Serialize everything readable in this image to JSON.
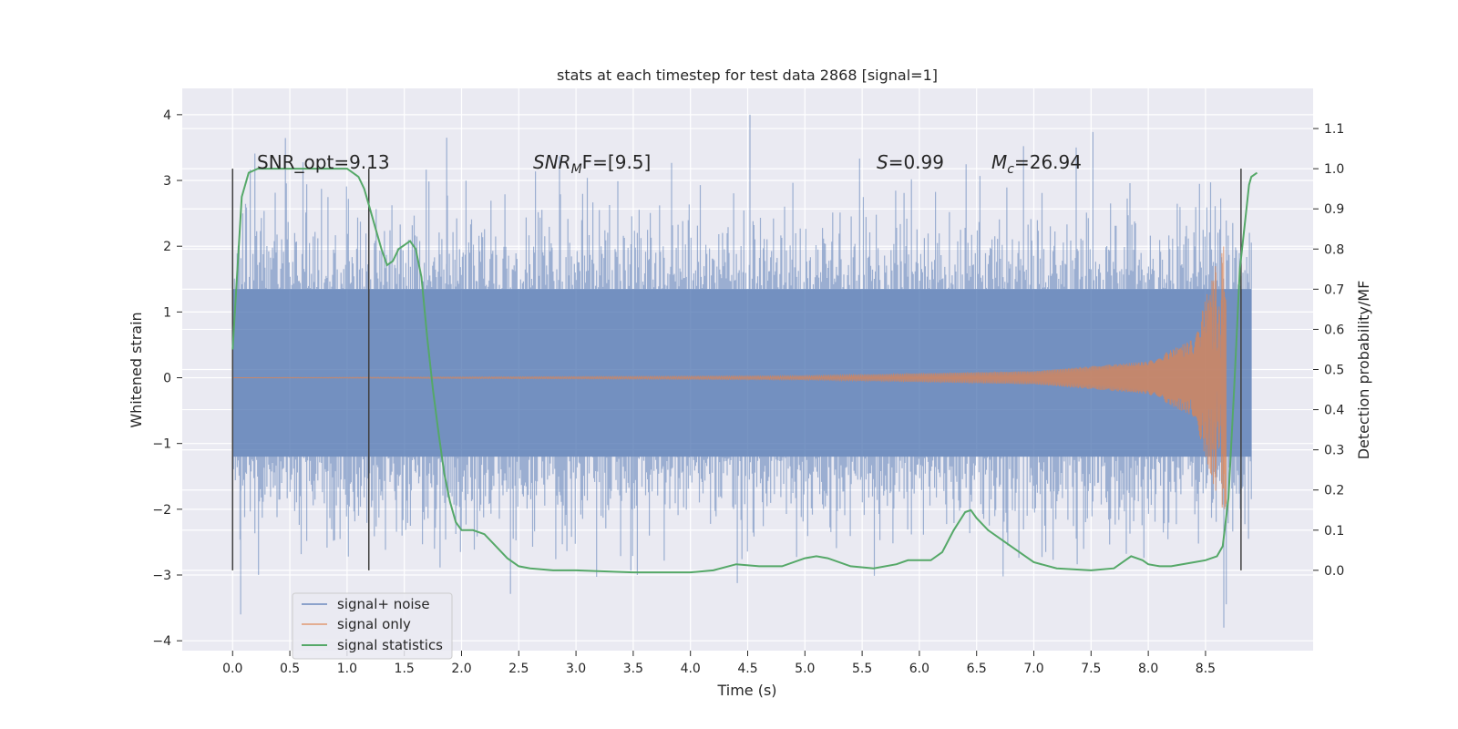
{
  "chart_data": {
    "type": "line",
    "title": "stats at each timestep for test data 2868 [signal=1]",
    "xlabel": "Time (s)",
    "ylabel": "Whitened strain",
    "y2label": "Detection probability/MF",
    "xlim": [
      -0.44,
      9.44
    ],
    "ylim": [
      -4.15,
      4.4
    ],
    "y2lim": [
      -0.2,
      1.2
    ],
    "x_ticks": [
      "0.0",
      "0.5",
      "1.0",
      "1.5",
      "2.0",
      "2.5",
      "3.0",
      "3.5",
      "4.0",
      "4.5",
      "5.0",
      "5.5",
      "6.0",
      "6.5",
      "7.0",
      "7.5",
      "8.0",
      "8.5"
    ],
    "y_ticks": [
      "4",
      "3",
      "2",
      "1",
      "0",
      "−1",
      "−2",
      "−3",
      "−4"
    ],
    "y2_ticks": [
      "1.1",
      "1.0",
      "0.9",
      "0.8",
      "0.7",
      "0.6",
      "0.5",
      "0.4",
      "0.3",
      "0.2",
      "0.1",
      "0.0"
    ],
    "grid": true,
    "legend_position": "lower-left",
    "legend": [
      "signal+ noise",
      "signal only",
      "signal statistics"
    ],
    "colors": {
      "background": "#eaeaf2",
      "grid": "#ffffff",
      "signal_noise": "#4c72b0",
      "signal_only": "#dd8452",
      "statistics": "#55a868",
      "window_lines": "#404040"
    },
    "annotations": {
      "snr_opt": "SNR_opt=9.13",
      "snr_mf_main": "SNR",
      "snr_mf_sub": "M",
      "snr_mf_rest": "F=[9.5]",
      "s_main": "S",
      "s_rest": "=0.99",
      "mc_main": "M",
      "mc_sub": "c",
      "mc_rest": "=26.94"
    },
    "window_lines_x": [
      0.0,
      1.19,
      8.81
    ],
    "signal_noise": {
      "x_range": [
        0.0,
        8.9
      ],
      "typical_envelope": [
        -1.2,
        1.35
      ],
      "peak_values": [
        {
          "x": 0.07,
          "y": -3.6
        },
        {
          "x": 1.19,
          "y": 2.7
        },
        {
          "x": 1.87,
          "y": 3.65
        },
        {
          "x": 4.52,
          "y": 4.0
        },
        {
          "x": 7.37,
          "y": 3.5
        },
        {
          "x": 8.66,
          "y": -3.8
        }
      ]
    },
    "signal_only": {
      "description_values": "chirp: near-zero amplitude until ~5s, growing to about ±2.0 near 8.6s",
      "amplitude_at_x": [
        [
          0.0,
          0.0
        ],
        [
          5.0,
          0.03
        ],
        [
          7.0,
          0.1
        ],
        [
          8.0,
          0.25
        ],
        [
          8.4,
          0.6
        ],
        [
          8.6,
          1.8
        ],
        [
          8.65,
          2.0
        ]
      ]
    },
    "series": [
      {
        "name": "signal statistics",
        "axis": "right",
        "x": [
          0.0,
          0.08,
          0.14,
          0.22,
          0.3,
          0.4,
          0.5,
          0.6,
          0.7,
          0.8,
          0.9,
          1.0,
          1.05,
          1.1,
          1.15,
          1.2,
          1.25,
          1.3,
          1.35,
          1.4,
          1.45,
          1.5,
          1.55,
          1.6,
          1.65,
          1.7,
          1.75,
          1.8,
          1.85,
          1.9,
          1.95,
          2.0,
          2.1,
          2.2,
          2.3,
          2.4,
          2.5,
          2.6,
          2.8,
          3.0,
          3.5,
          4.0,
          4.2,
          4.4,
          4.6,
          4.8,
          5.0,
          5.1,
          5.2,
          5.4,
          5.6,
          5.8,
          5.9,
          6.1,
          6.2,
          6.3,
          6.4,
          6.45,
          6.5,
          6.6,
          6.8,
          7.0,
          7.2,
          7.5,
          7.7,
          7.8,
          7.85,
          7.95,
          8.0,
          8.1,
          8.2,
          8.4,
          8.5,
          8.6,
          8.65,
          8.7,
          8.75,
          8.8,
          8.85,
          8.88,
          8.9,
          8.95
        ],
        "y": [
          0.55,
          0.93,
          0.99,
          1.0,
          1.0,
          1.0,
          1.0,
          1.0,
          1.0,
          1.0,
          1.0,
          1.0,
          0.99,
          0.98,
          0.95,
          0.9,
          0.85,
          0.8,
          0.76,
          0.77,
          0.8,
          0.81,
          0.82,
          0.8,
          0.73,
          0.58,
          0.45,
          0.34,
          0.24,
          0.17,
          0.12,
          0.1,
          0.1,
          0.09,
          0.06,
          0.03,
          0.01,
          0.005,
          0.0,
          0.0,
          -0.005,
          -0.005,
          0.0,
          0.015,
          0.01,
          0.01,
          0.03,
          0.035,
          0.03,
          0.01,
          0.005,
          0.015,
          0.025,
          0.025,
          0.045,
          0.1,
          0.145,
          0.15,
          0.13,
          0.1,
          0.06,
          0.02,
          0.005,
          0.0,
          0.005,
          0.025,
          0.035,
          0.025,
          0.015,
          0.01,
          0.01,
          0.02,
          0.025,
          0.035,
          0.06,
          0.18,
          0.45,
          0.75,
          0.88,
          0.96,
          0.98,
          0.99
        ]
      }
    ]
  }
}
